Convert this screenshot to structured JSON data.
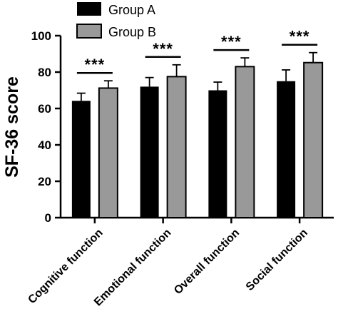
{
  "chart_data": {
    "type": "bar",
    "ylabel": "SF-36 score",
    "xlabel": "",
    "ylim": [
      0,
      100
    ],
    "yticks": [
      "0",
      "20",
      "40",
      "60",
      "80",
      "100"
    ],
    "categories": [
      "Cognitive function",
      "Emotional function",
      "Overall function",
      "Social function"
    ],
    "series": [
      {
        "name": "Group A",
        "color": "#000000",
        "values": [
          64.2,
          72.0,
          70.0,
          75.0
        ],
        "errors": [
          4.2,
          5.0,
          4.5,
          6.2
        ]
      },
      {
        "name": "Group B",
        "color": "#999999",
        "values": [
          71.2,
          77.5,
          83.0,
          85.2
        ],
        "errors": [
          4.0,
          6.5,
          4.8,
          5.5
        ]
      }
    ],
    "significance": [
      "***",
      "***",
      "***",
      "***"
    ],
    "legend_position": "top-left",
    "grid": false
  }
}
